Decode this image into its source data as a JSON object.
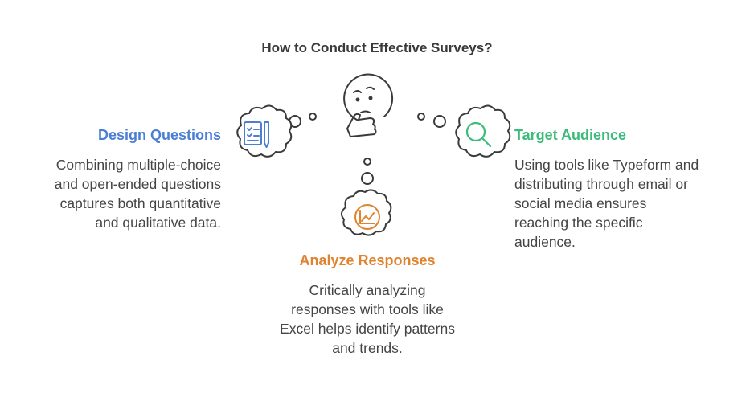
{
  "title": "How to Conduct Effective Surveys?",
  "colors": {
    "design": "#4a7fd4",
    "target": "#3dbb7a",
    "analyze": "#e0832f",
    "outline": "#3a3a3a",
    "text": "#444444"
  },
  "icons": {
    "center": "thinking-face-icon",
    "design": "checklist-pen-icon",
    "target": "magnifier-icon",
    "analyze": "line-chart-icon"
  },
  "nodes": {
    "design": {
      "heading": "Design Questions",
      "lines": [
        "Combining multiple-choice",
        "and open-ended questions",
        "captures both quantitative",
        "and qualitative data."
      ]
    },
    "target": {
      "heading": "Target Audience",
      "lines": [
        "Using tools like Typeform and",
        "distributing through email or",
        "social media ensures",
        "reaching the specific",
        "audience."
      ]
    },
    "analyze": {
      "heading": "Analyze Responses",
      "lines": [
        "Critically analyzing",
        "responses with tools like",
        "Excel helps identify patterns",
        "and trends."
      ]
    }
  }
}
